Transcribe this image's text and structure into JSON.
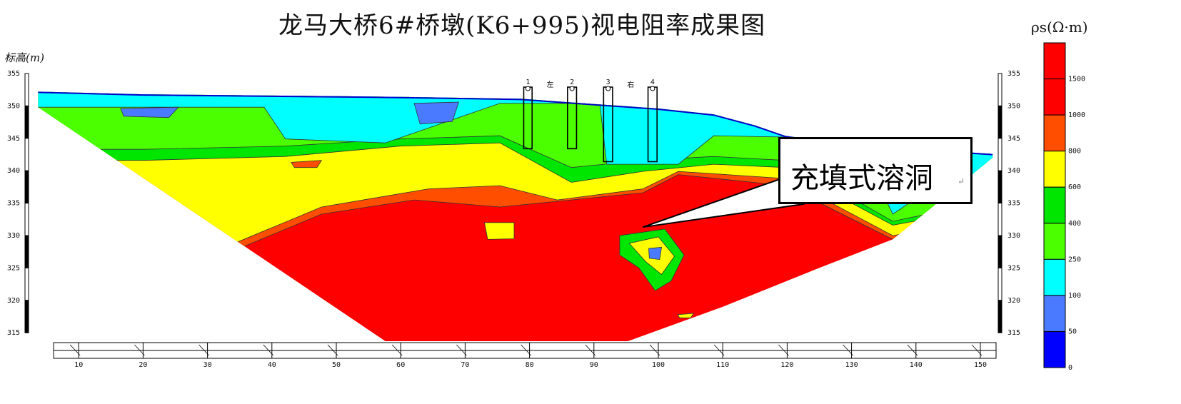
{
  "chart_data": {
    "type": "heatmap",
    "title": "龙马大桥6#桥墩(K6+995)视电阻率成果图",
    "ylabel": "标高(m)",
    "colorbar_title": "ρs(Ω·m)",
    "x_ticks": [
      "10",
      "20",
      "30",
      "40",
      "50",
      "60",
      "70",
      "80",
      "90",
      "100",
      "110",
      "120",
      "130",
      "140",
      "150"
    ],
    "y_ticks": [
      "355",
      "350",
      "345",
      "340",
      "335",
      "330",
      "325",
      "320",
      "315"
    ],
    "xlim": [
      0,
      155
    ],
    "ylim": [
      313,
      355
    ],
    "legend_placement": "right",
    "classes": [
      {
        "min": 1500,
        "max": null,
        "color": "#ff0000"
      },
      {
        "min": 1000,
        "max": 1500,
        "color": "#ff0000"
      },
      {
        "min": 800,
        "max": 1000,
        "color": "#ff4e00"
      },
      {
        "min": 600,
        "max": 800,
        "color": "#ffff00"
      },
      {
        "min": 400,
        "max": 600,
        "color": "#00e600"
      },
      {
        "min": 250,
        "max": 400,
        "color": "#4cff00"
      },
      {
        "min": 100,
        "max": 250,
        "color": "#00ffff"
      },
      {
        "min": 50,
        "max": 100,
        "color": "#4a7aff"
      },
      {
        "min": 0,
        "max": 50,
        "color": "#0000ff"
      }
    ],
    "colorbar_labels": [
      "1500",
      "1000",
      "800",
      "600",
      "400",
      "250",
      "100",
      "50",
      "0"
    ],
    "section_outline": [
      [
        3.7,
        352.2
      ],
      [
        20,
        351.8
      ],
      [
        40,
        351.6
      ],
      [
        60,
        351.4
      ],
      [
        78.7,
        351.1
      ],
      [
        90,
        350.3
      ],
      [
        100,
        349.6
      ],
      [
        108.6,
        348.7
      ],
      [
        115,
        347
      ],
      [
        119.7,
        345.4
      ],
      [
        130,
        344
      ],
      [
        151.9,
        342.6
      ],
      [
        151.9,
        342
      ],
      [
        136.4,
        329.4
      ],
      [
        125,
        325
      ],
      [
        110,
        319
      ],
      [
        95.3,
        313.7
      ],
      [
        57.6,
        313.7
      ],
      [
        3.7,
        349.8
      ]
    ],
    "boundaries": [
      {
        "color": "#ff4e00",
        "points": [
          [
            0,
            329
          ],
          [
            34.4,
            327.8
          ],
          [
            47.7,
            333.3
          ],
          [
            62.1,
            335.5
          ],
          [
            75.4,
            334.4
          ],
          [
            86.5,
            335.5
          ],
          [
            97.6,
            336.6
          ],
          [
            103.1,
            339.4
          ],
          [
            119.7,
            337.7
          ],
          [
            136.4,
            329.4
          ],
          [
            155,
            332
          ]
        ]
      },
      {
        "color": "#ffff00",
        "points": [
          [
            0,
            334.4
          ],
          [
            8.9,
            334.4
          ],
          [
            25.5,
            334.4
          ],
          [
            34.4,
            328.9
          ],
          [
            47.7,
            334.4
          ],
          [
            64.3,
            337.2
          ],
          [
            75.4,
            337.7
          ],
          [
            84.3,
            335.5
          ],
          [
            97.6,
            337.2
          ],
          [
            103.1,
            339.9
          ],
          [
            119.7,
            338.8
          ],
          [
            136.4,
            330
          ],
          [
            155,
            333
          ]
        ]
      },
      {
        "color": "#00e600",
        "points": [
          [
            0,
            341.6
          ],
          [
            20,
            341.6
          ],
          [
            42.1,
            342.2
          ],
          [
            59.9,
            343.8
          ],
          [
            75.4,
            344.3
          ],
          [
            86.5,
            338.2
          ],
          [
            97.6,
            339.9
          ],
          [
            108.6,
            341
          ],
          [
            119.7,
            340.5
          ],
          [
            136.4,
            331.6
          ],
          [
            155,
            335
          ]
        ]
      },
      {
        "color": "#4cff00",
        "points": [
          [
            0,
            343.3
          ],
          [
            20,
            343.3
          ],
          [
            42.1,
            343.8
          ],
          [
            59.9,
            344.9
          ],
          [
            75.4,
            345.4
          ],
          [
            86.5,
            340.5
          ],
          [
            97.6,
            341.6
          ],
          [
            108.6,
            342.2
          ],
          [
            119.7,
            341.6
          ],
          [
            136.4,
            332.2
          ],
          [
            155,
            336
          ]
        ]
      },
      {
        "color": "#00ffff",
        "points": [
          [
            0,
            349.8
          ],
          [
            20,
            349.8
          ],
          [
            38.8,
            349.8
          ],
          [
            42.1,
            344.9
          ],
          [
            57.6,
            344.3
          ],
          [
            75.4,
            350.4
          ],
          [
            90.9,
            350.4
          ],
          [
            92,
            341
          ],
          [
            103.1,
            341
          ],
          [
            108.6,
            345.4
          ],
          [
            130.8,
            345
          ],
          [
            136.4,
            333.3
          ],
          [
            141.9,
            337
          ],
          [
            155,
            340
          ]
        ]
      }
    ],
    "pockets": [
      {
        "color": "#4a7aff",
        "points": [
          [
            16.5,
            349.6
          ],
          [
            25.5,
            349.8
          ],
          [
            24,
            348.2
          ],
          [
            17,
            348.4
          ]
        ]
      },
      {
        "color": "#4a7aff",
        "points": [
          [
            62.1,
            350.4
          ],
          [
            69,
            350.6
          ],
          [
            68,
            347.6
          ],
          [
            63,
            347.2
          ]
        ]
      },
      {
        "color": "#ff4e00",
        "points": [
          [
            43,
            341.3
          ],
          [
            47.7,
            341.6
          ],
          [
            47,
            340.5
          ],
          [
            43.5,
            340.5
          ]
        ]
      },
      {
        "color": "#ffff00",
        "points": [
          [
            73,
            332
          ],
          [
            77.6,
            332
          ],
          [
            77.6,
            329.5
          ],
          [
            73.5,
            329.4
          ]
        ]
      },
      {
        "color": "#00e600",
        "points": [
          [
            94,
            330
          ],
          [
            101,
            331
          ],
          [
            104,
            327
          ],
          [
            102,
            323
          ],
          [
            99.5,
            321.5
          ],
          [
            97,
            325
          ],
          [
            94,
            327
          ]
        ]
      },
      {
        "color": "#ffff00",
        "points": [
          [
            95.5,
            328.8
          ],
          [
            100,
            329.8
          ],
          [
            102.5,
            326.8
          ],
          [
            100.5,
            324
          ],
          [
            98,
            326
          ]
        ]
      },
      {
        "color": "#4a7aff",
        "points": [
          [
            98.5,
            328
          ],
          [
            100.5,
            328.2
          ],
          [
            100.2,
            326.3
          ],
          [
            98.6,
            326.5
          ]
        ]
      },
      {
        "color": "#ffff00",
        "points": [
          [
            103,
            317.8
          ],
          [
            105.5,
            318
          ],
          [
            105,
            317.3
          ],
          [
            103.3,
            317.3
          ]
        ]
      }
    ],
    "boreholes": [
      {
        "label": "1",
        "x": [
          79.1,
          80.4
        ],
        "elev": [
          352.9,
          343.4
        ]
      },
      {
        "label": "2",
        "x": [
          85.9,
          87.3
        ],
        "elev": [
          352.9,
          343.4
        ]
      },
      {
        "label": "3",
        "x": [
          91.5,
          92.9
        ],
        "elev": [
          352.9,
          341.4
        ]
      },
      {
        "label": "4",
        "x": [
          98.4,
          99.8
        ],
        "elev": [
          352.9,
          341.4
        ]
      }
    ],
    "borehole_side_labels": [
      {
        "text": "左",
        "x": 83.2
      },
      {
        "text": "右",
        "x": 95.7
      }
    ],
    "annotation": {
      "text": "充填式溶洞",
      "mark": "↵",
      "target": [
        97.6,
        331.3
      ]
    }
  }
}
